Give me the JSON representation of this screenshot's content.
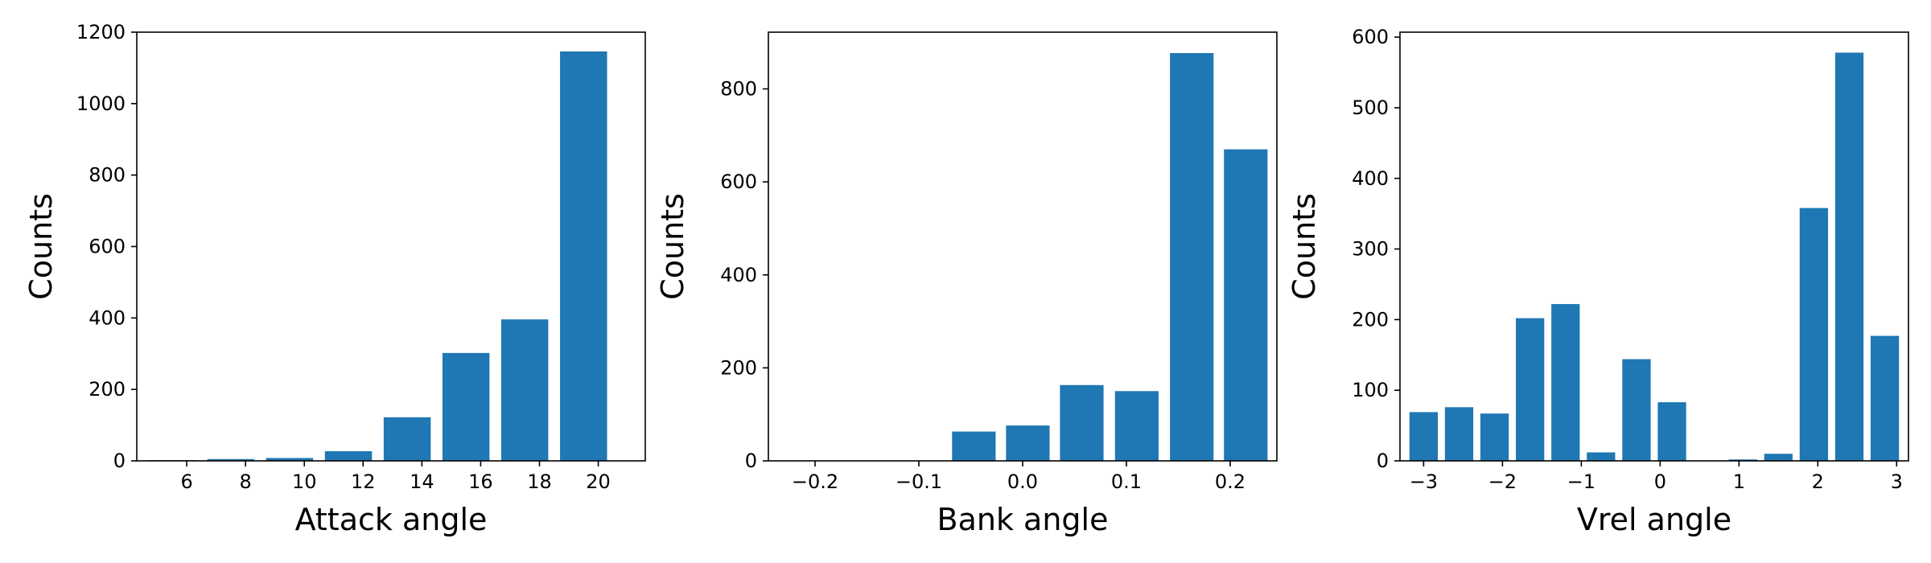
{
  "chart_data": [
    {
      "type": "bar",
      "xlabel": "Attack angle",
      "ylabel": "Counts",
      "bar_color": "#1f77b4",
      "x": [
        5.5,
        7.5,
        9.5,
        11.5,
        13.5,
        15.5,
        17.5,
        19.5
      ],
      "values": [
        2,
        5,
        8,
        27,
        122,
        302,
        396,
        1146
      ],
      "xlim": [
        4.3,
        21.6
      ],
      "ylim": [
        0,
        1200
      ],
      "xticks": [
        6,
        8,
        10,
        12,
        14,
        16,
        18,
        20
      ],
      "xtick_labels": [
        "6",
        "8",
        "10",
        "12",
        "14",
        "16",
        "18",
        "20"
      ],
      "yticks": [
        0,
        200,
        400,
        600,
        800,
        1000,
        1200
      ],
      "ytick_labels": [
        "0",
        "200",
        "400",
        "600",
        "800",
        "1000",
        "1200"
      ],
      "bar_width": 1.6
    },
    {
      "type": "bar",
      "xlabel": "Bank angle",
      "ylabel": "Counts",
      "bar_color": "#1f77b4",
      "x": [
        -0.2,
        -0.15,
        -0.1,
        -0.047,
        0.005,
        0.057,
        0.11,
        0.163,
        0.215
      ],
      "values": [
        0,
        0,
        0,
        63,
        76,
        163,
        150,
        877,
        670
      ],
      "xlim": [
        -0.245,
        0.245
      ],
      "ylim": [
        0,
        922
      ],
      "xticks": [
        -0.2,
        -0.1,
        0.0,
        0.1,
        0.2
      ],
      "xtick_labels": [
        "−0.2",
        "−0.1",
        "0.0",
        "0.1",
        "0.2"
      ],
      "yticks": [
        0,
        200,
        400,
        600,
        800
      ],
      "ytick_labels": [
        "0",
        "200",
        "400",
        "600",
        "800"
      ],
      "bar_width": 0.042
    },
    {
      "type": "bar",
      "xlabel": "Vrel angle",
      "ylabel": "Counts",
      "bar_color": "#1f77b4",
      "x": [
        -3.0,
        -2.55,
        -2.1,
        -1.65,
        -1.2,
        -0.75,
        -0.3,
        0.15,
        0.6,
        1.05,
        1.5,
        1.95,
        2.4,
        2.85
      ],
      "values": [
        69,
        76,
        67,
        202,
        222,
        12,
        144,
        83,
        0,
        2,
        10,
        358,
        578,
        177
      ],
      "xlim": [
        -3.3,
        3.15
      ],
      "ylim": [
        0,
        607
      ],
      "xticks": [
        -3,
        -2,
        -1,
        0,
        1,
        2,
        3
      ],
      "xtick_labels": [
        "−3",
        "−2",
        "−1",
        "0",
        "1",
        "2",
        "3"
      ],
      "yticks": [
        0,
        100,
        200,
        300,
        400,
        500,
        600
      ],
      "ytick_labels": [
        "0",
        "100",
        "200",
        "300",
        "400",
        "500",
        "600"
      ],
      "bar_width": 0.36
    }
  ]
}
